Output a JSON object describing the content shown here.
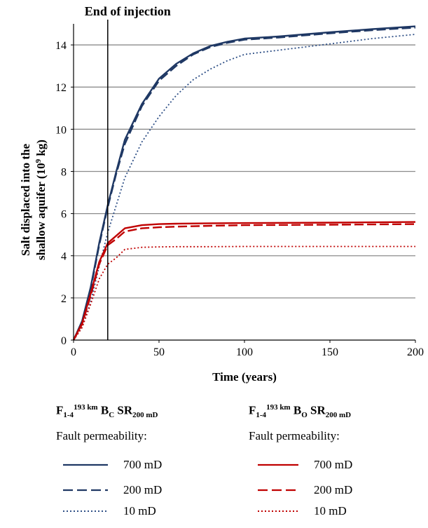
{
  "chart_data": {
    "type": "line",
    "annotation": {
      "text": "End of injection",
      "x": 20
    },
    "xlabel": "Time (years)",
    "ylabel_line1": "Salt displaced into the",
    "ylabel_line2_pre": "shallow aquifer (10",
    "ylabel_line2_sup": "9",
    "ylabel_line2_post": " kg)",
    "xlim": [
      0,
      200
    ],
    "ylim": [
      0,
      15
    ],
    "xticks": [
      0,
      50,
      100,
      150,
      200
    ],
    "yticks": [
      0,
      2,
      4,
      6,
      8,
      10,
      12,
      14
    ],
    "grid": "horizontal",
    "series": [
      {
        "group": "bc",
        "name": "700 mD",
        "color": "#1f3864",
        "dash": "solid",
        "x": [
          0,
          5,
          10,
          15,
          20,
          25,
          30,
          40,
          50,
          60,
          70,
          80,
          90,
          100,
          120,
          150,
          175,
          200
        ],
        "y": [
          0,
          0.9,
          2.5,
          4.6,
          6.4,
          8.0,
          9.5,
          11.2,
          12.4,
          13.1,
          13.6,
          13.95,
          14.15,
          14.3,
          14.4,
          14.6,
          14.75,
          14.88
        ]
      },
      {
        "group": "bc",
        "name": "200 mD",
        "color": "#1f3864",
        "dash": "dashed",
        "x": [
          0,
          5,
          10,
          15,
          20,
          25,
          30,
          40,
          50,
          60,
          70,
          80,
          90,
          100,
          120,
          150,
          175,
          200
        ],
        "y": [
          0,
          0.85,
          2.4,
          4.5,
          6.3,
          7.9,
          9.3,
          11.1,
          12.3,
          13.0,
          13.55,
          13.9,
          14.1,
          14.25,
          14.35,
          14.55,
          14.7,
          14.82
        ]
      },
      {
        "group": "bc",
        "name": "10 mD",
        "color": "#2e4f86",
        "dash": "dotted",
        "x": [
          0,
          5,
          10,
          15,
          20,
          25,
          30,
          40,
          50,
          60,
          70,
          80,
          90,
          100,
          120,
          150,
          175,
          200
        ],
        "y": [
          0,
          0.6,
          1.8,
          3.5,
          5.1,
          6.4,
          7.7,
          9.4,
          10.6,
          11.6,
          12.35,
          12.85,
          13.25,
          13.55,
          13.75,
          14.05,
          14.3,
          14.5
        ]
      },
      {
        "group": "bo",
        "name": "700 mD",
        "color": "#c00000",
        "dash": "solid",
        "x": [
          0,
          5,
          10,
          15,
          20,
          25,
          30,
          40,
          50,
          60,
          80,
          100,
          150,
          200
        ],
        "y": [
          0,
          0.8,
          2.2,
          3.7,
          4.6,
          4.95,
          5.3,
          5.45,
          5.5,
          5.52,
          5.54,
          5.55,
          5.57,
          5.6
        ]
      },
      {
        "group": "bo",
        "name": "200 mD",
        "color": "#c00000",
        "dash": "dashed",
        "x": [
          0,
          5,
          10,
          15,
          20,
          25,
          30,
          40,
          50,
          60,
          80,
          100,
          150,
          200
        ],
        "y": [
          0,
          0.75,
          2.1,
          3.6,
          4.5,
          4.8,
          5.15,
          5.3,
          5.35,
          5.38,
          5.42,
          5.45,
          5.47,
          5.5
        ]
      },
      {
        "group": "bo",
        "name": "10 mD",
        "color": "#c00000",
        "dash": "dotted",
        "x": [
          0,
          5,
          10,
          15,
          20,
          25,
          30,
          40,
          50,
          60,
          80,
          100,
          150,
          200
        ],
        "y": [
          0,
          0.6,
          1.7,
          2.9,
          3.6,
          3.9,
          4.3,
          4.4,
          4.42,
          4.43,
          4.43,
          4.44,
          4.44,
          4.44
        ]
      }
    ]
  },
  "legend": {
    "bc": {
      "title_main": "F",
      "title_sub": "1-4",
      "title_sup": "193 km",
      "title_b": " B",
      "title_b_sub": "C",
      "title_sr": " SR",
      "title_sr_sub": "200 mD"
    },
    "bo": {
      "title_main": "F",
      "title_sub": "1-4",
      "title_sup": "193 km",
      "title_b": " B",
      "title_b_sub": "O",
      "title_sr": " SR",
      "title_sr_sub": "200 mD"
    },
    "subtitle": "Fault permeability:",
    "labels": [
      "700 mD",
      "200 mD",
      "10 mD"
    ]
  }
}
